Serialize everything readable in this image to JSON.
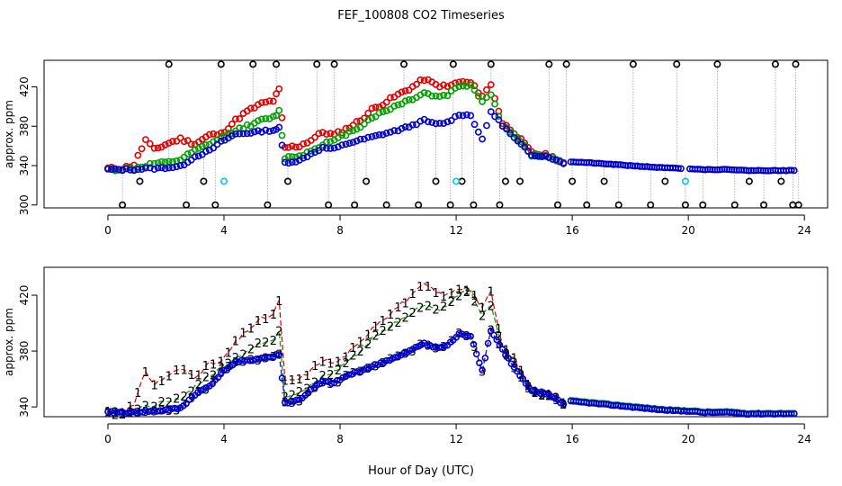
{
  "chart_data": [
    {
      "type": "scatter",
      "title": "FEF_100808  CO2 Timeseries",
      "ylabel": "approx. ppm",
      "xlabel": "",
      "xlim": [
        -2.2,
        24.8
      ],
      "ylim": [
        297,
        447
      ],
      "x_ticks": [
        0,
        4,
        8,
        12,
        16,
        20,
        24
      ],
      "y_ticks": [
        300,
        340,
        380,
        420
      ],
      "grid": false,
      "series": [
        {
          "name": "black spikes",
          "color": "#000000",
          "style": "circles+spikes",
          "x": [
            0.5,
            1.1,
            2.1,
            2.7,
            3.3,
            3.7,
            3.9,
            5.0,
            5.5,
            5.8,
            6.2,
            7.2,
            7.6,
            7.8,
            8.5,
            8.9,
            9.6,
            10.2,
            10.7,
            11.3,
            11.8,
            11.9,
            12.2,
            12.6,
            13.2,
            13.5,
            13.7,
            14.2,
            15.2,
            15.5,
            15.8,
            16.0,
            16.5,
            17.1,
            17.6,
            18.1,
            18.7,
            19.2,
            19.6,
            19.9,
            20.5,
            21.0,
            21.6,
            22.1,
            22.6,
            23.0,
            23.2,
            23.6,
            23.7,
            23.8
          ],
          "y": [
            300,
            324,
            443,
            300,
            324,
            300,
            443,
            443,
            300,
            443,
            324,
            443,
            300,
            443,
            300,
            324,
            300,
            443,
            300,
            324,
            300,
            443,
            324,
            300,
            443,
            300,
            324,
            324,
            443,
            300,
            443,
            324,
            300,
            324,
            300,
            443,
            300,
            324,
            443,
            300,
            300,
            443,
            300,
            324,
            300,
            443,
            324,
            300,
            443,
            300
          ]
        },
        {
          "name": "cyan",
          "color": "#00c8e8",
          "style": "circles",
          "x": [
            4.0,
            12.0,
            19.9
          ],
          "y": [
            324,
            324,
            324
          ]
        },
        {
          "name": "1",
          "color": "#e00000",
          "points": [
            [
              0,
              337
            ],
            [
              0.5,
              337
            ],
            [
              0.9,
              341
            ],
            [
              1.3,
              366
            ],
            [
              1.6,
              356
            ],
            [
              2.1,
              363
            ],
            [
              2.5,
              367
            ],
            [
              3.0,
              362
            ],
            [
              3.5,
              371
            ],
            [
              3.9,
              372
            ],
            [
              4.4,
              386
            ],
            [
              4.8,
              395
            ],
            [
              5.3,
              403
            ],
            [
              5.7,
              406
            ],
            [
              5.9,
              417
            ],
            [
              6.1,
              358
            ],
            [
              6.6,
              360
            ],
            [
              7.0,
              366
            ],
            [
              7.4,
              374
            ],
            [
              7.8,
              371
            ],
            [
              8.2,
              377
            ],
            [
              8.7,
              386
            ],
            [
              9.1,
              397
            ],
            [
              9.6,
              405
            ],
            [
              10.0,
              412
            ],
            [
              10.5,
              420
            ],
            [
              10.9,
              428
            ],
            [
              11.3,
              422
            ],
            [
              11.7,
              420
            ],
            [
              12.1,
              425
            ],
            [
              12.5,
              424
            ],
            [
              12.9,
              411
            ],
            [
              13.2,
              422
            ],
            [
              13.6,
              383
            ],
            [
              14.0,
              374
            ],
            [
              14.6,
              353
            ],
            [
              15.2,
              350
            ],
            [
              15.7,
              343
            ]
          ]
        },
        {
          "name": "2",
          "color": "#00a000",
          "points": [
            [
              0,
              336
            ],
            [
              0.5,
              336
            ],
            [
              0.9,
              337
            ],
            [
              1.3,
              340
            ],
            [
              1.6,
              342
            ],
            [
              2.1,
              343
            ],
            [
              2.5,
              346
            ],
            [
              3.0,
              355
            ],
            [
              3.5,
              362
            ],
            [
              3.9,
              368
            ],
            [
              4.4,
              376
            ],
            [
              4.8,
              380
            ],
            [
              5.3,
              386
            ],
            [
              5.7,
              389
            ],
            [
              5.9,
              395
            ],
            [
              6.1,
              348
            ],
            [
              6.6,
              350
            ],
            [
              7.0,
              355
            ],
            [
              7.4,
              362
            ],
            [
              7.8,
              365
            ],
            [
              8.2,
              372
            ],
            [
              8.7,
              380
            ],
            [
              9.1,
              389
            ],
            [
              9.6,
              396
            ],
            [
              10.0,
              402
            ],
            [
              10.5,
              408
            ],
            [
              10.9,
              414
            ],
            [
              11.3,
              410
            ],
            [
              11.7,
              412
            ],
            [
              12.1,
              421
            ],
            [
              12.5,
              422
            ],
            [
              12.9,
              406
            ],
            [
              13.2,
              412
            ],
            [
              13.6,
              381
            ],
            [
              14.0,
              371
            ],
            [
              14.6,
              351
            ],
            [
              15.2,
              349
            ],
            [
              15.7,
              342
            ]
          ]
        },
        {
          "name": "3",
          "color": "#0000cc",
          "points": [
            [
              0,
              336
            ],
            [
              0.5,
              336
            ],
            [
              0.9,
              336
            ],
            [
              1.3,
              337
            ],
            [
              1.6,
              337
            ],
            [
              2.1,
              338
            ],
            [
              2.5,
              339
            ],
            [
              3.0,
              349
            ],
            [
              3.5,
              355
            ],
            [
              3.9,
              364
            ],
            [
              4.4,
              372
            ],
            [
              4.8,
              373
            ],
            [
              5.3,
              375
            ],
            [
              5.7,
              376
            ],
            [
              5.9,
              378
            ],
            [
              6.1,
              343
            ],
            [
              6.6,
              345
            ],
            [
              7.0,
              352
            ],
            [
              7.4,
              358
            ],
            [
              7.8,
              357
            ],
            [
              8.2,
              362
            ],
            [
              8.7,
              366
            ],
            [
              9.1,
              369
            ],
            [
              9.6,
              373
            ],
            [
              10.0,
              376
            ],
            [
              10.5,
              381
            ],
            [
              10.9,
              386
            ],
            [
              11.3,
              382
            ],
            [
              11.7,
              384
            ],
            [
              12.1,
              392
            ],
            [
              12.5,
              391
            ],
            [
              12.9,
              366
            ],
            [
              13.2,
              395
            ],
            [
              13.6,
              381
            ],
            [
              14.0,
              368
            ],
            [
              14.6,
              351
            ],
            [
              15.2,
              349
            ],
            [
              15.7,
              342
            ]
          ]
        },
        {
          "name": "tail",
          "color": "#0000cc",
          "points": [
            [
              15.95,
              344
            ],
            [
              16.5,
              343
            ],
            [
              17,
              342
            ],
            [
              17.5,
              341
            ],
            [
              18,
              340
            ],
            [
              18.5,
              339
            ],
            [
              19,
              338
            ],
            [
              19.75,
              337
            ],
            [
              20.05,
              337
            ],
            [
              20.5,
              336
            ],
            [
              21,
              336
            ],
            [
              21.5,
              336
            ],
            [
              22,
              335
            ],
            [
              22.5,
              335
            ],
            [
              23,
              335
            ],
            [
              23.65,
              335
            ]
          ]
        }
      ]
    },
    {
      "type": "line",
      "title": "",
      "ylabel": "approx. ppm",
      "xlabel": "Hour of Day (UTC)",
      "xlim": [
        -2.2,
        24.8
      ],
      "ylim": [
        333,
        440
      ],
      "x_ticks": [
        0,
        4,
        8,
        12,
        16,
        20,
        24
      ],
      "y_ticks": [
        340,
        380,
        420
      ],
      "grid": false,
      "series": [
        {
          "name": "1",
          "color": "#e00000",
          "symbol": "1"
        },
        {
          "name": "2",
          "color": "#00a000",
          "symbol": "2"
        },
        {
          "name": "3",
          "color": "#0000cc",
          "symbol": "3"
        }
      ]
    }
  ]
}
